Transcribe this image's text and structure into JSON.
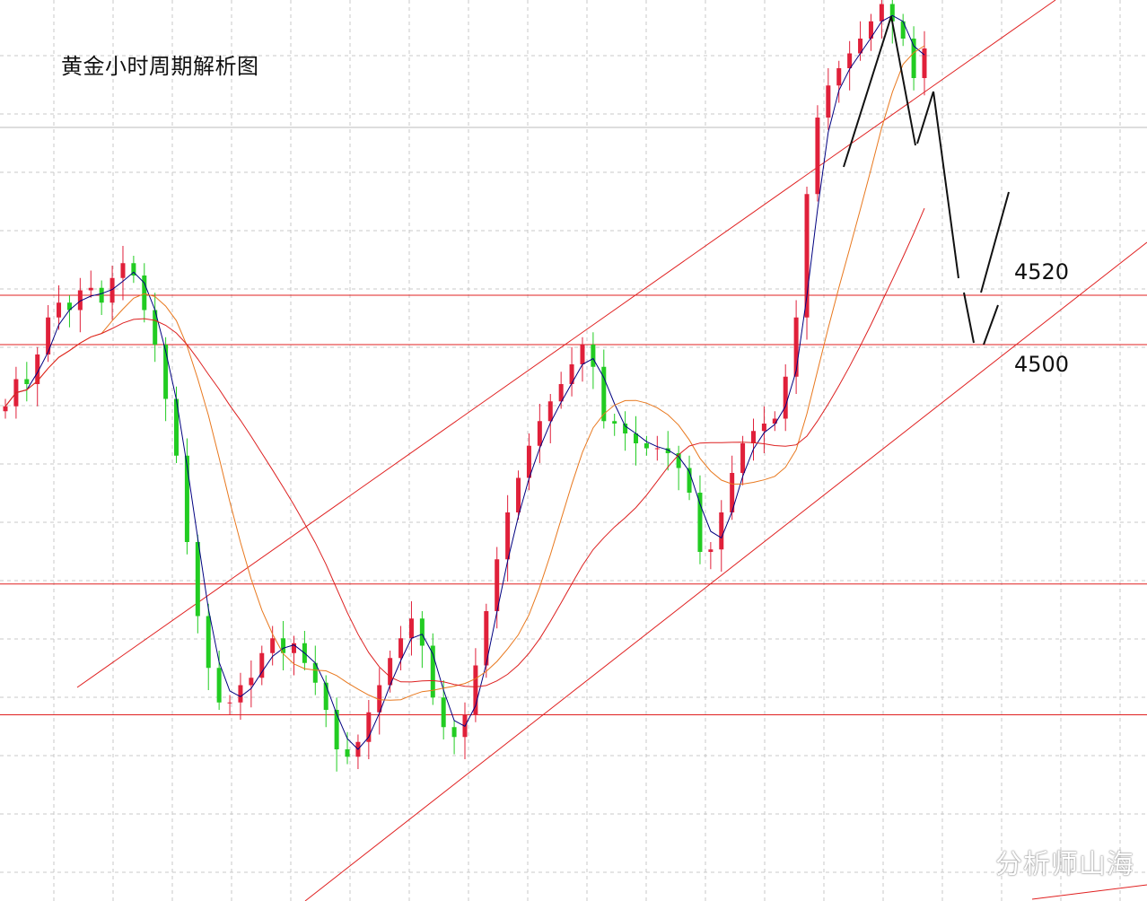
{
  "title": "黄金小时周期解析图",
  "watermark": "分析师山海",
  "chart_data": {
    "type": "candlestick",
    "timeframe": "1H",
    "symbol": "gold",
    "price_axis": {
      "visible": false,
      "ticks_printed": [],
      "grid": true
    },
    "levels": [
      {
        "label": "4520",
        "price": 4520
      },
      {
        "label": "4500",
        "price": 4500
      }
    ],
    "unlabeled_levels": [
      4403,
      4350
    ],
    "price_range": [
      4310,
      4648
    ],
    "channel": {
      "type": "ascending",
      "lines": [
        "upper",
        "lower"
      ]
    },
    "moving_averages": [
      {
        "color": "#000080"
      },
      {
        "color": "#e8781e"
      },
      {
        "color": "#dd2020"
      }
    ],
    "candles_close": [
      4475,
      4486,
      4484,
      4496,
      4511,
      4517,
      4514,
      4522,
      4523,
      4517,
      4527,
      4533,
      4528,
      4514,
      4500,
      4478,
      4455,
      4420,
      4390,
      4369,
      4355,
      4355,
      4362,
      4365,
      4375,
      4381,
      4375,
      4379,
      4371,
      4363,
      4352,
      4336,
      4333,
      4339,
      4351,
      4362,
      4373,
      4381,
      4389,
      4378,
      4357,
      4345,
      4341,
      4350,
      4370,
      4392,
      4413,
      4432,
      4446,
      4459,
      4469,
      4477,
      4484,
      4492,
      4500,
      4491,
      4469,
      4468,
      4464,
      4460,
      4458,
      4458,
      4456,
      4450,
      4440,
      4416,
      4417,
      4432,
      4448,
      4460,
      4465,
      4468,
      4470,
      4487,
      4511,
      4561,
      4592,
      4605,
      4612,
      4618,
      4624,
      4631,
      4638,
      4631,
      4624,
      4608,
      4620
    ]
  },
  "colors": {
    "bull": "#e0203a",
    "bear": "#22cc22",
    "level_line": "#e02020",
    "channel_line": "#e02020",
    "projection": "#111111",
    "grid": "#c8c8c8"
  }
}
